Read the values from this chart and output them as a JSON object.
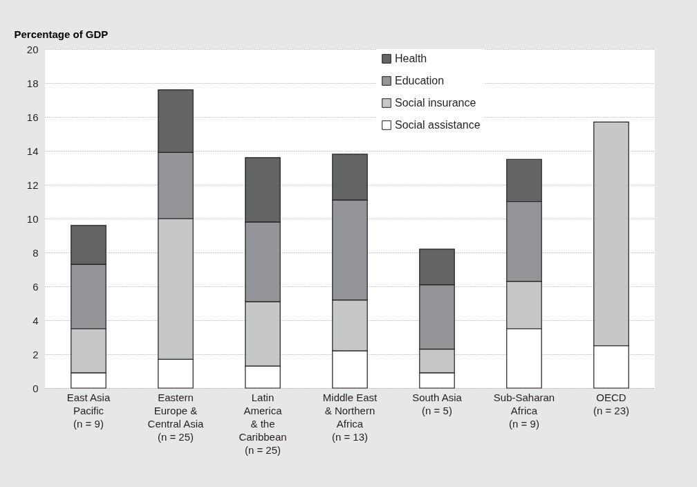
{
  "chart_data": {
    "type": "bar",
    "stacked": true,
    "ylabel": "Percentage of GDP",
    "categories": [
      "East Asia\nPacific\n(n = 9)",
      "Eastern\nEurope &\nCentral Asia\n(n = 25)",
      "Latin\nAmerica\n& the\nCaribbean\n(n = 25)",
      "Middle East\n& Northern\nAfrica\n(n = 13)",
      "South Asia\n(n = 5)",
      "Sub-Saharan\nAfrica\n(n = 9)",
      "OECD\n(n = 23)"
    ],
    "series": [
      {
        "name": "Social assistance",
        "color": "#ffffff",
        "values": [
          0.9,
          1.7,
          1.3,
          2.2,
          0.9,
          3.5,
          2.5
        ]
      },
      {
        "name": "Social insurance",
        "color": "#c6c7c9",
        "values": [
          2.6,
          8.3,
          3.8,
          3.0,
          1.4,
          2.8,
          13.2
        ]
      },
      {
        "name": "Education",
        "color": "#949598",
        "values": [
          3.8,
          3.9,
          4.7,
          5.9,
          3.8,
          4.7,
          null
        ]
      },
      {
        "name": "Health",
        "color": "#636466",
        "values": [
          2.3,
          3.7,
          3.8,
          2.7,
          2.1,
          2.5,
          null
        ]
      }
    ],
    "ylim": [
      0,
      20
    ],
    "yticks": [
      0,
      2,
      4,
      6,
      8,
      10,
      12,
      14,
      16,
      18,
      20
    ],
    "grid": "y",
    "legend": "top right"
  }
}
